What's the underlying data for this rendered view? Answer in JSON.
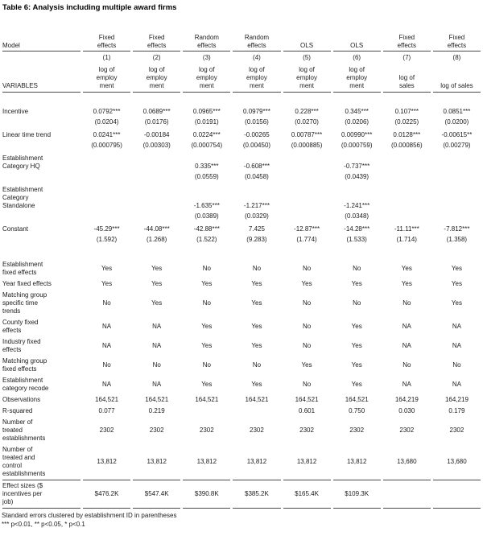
{
  "title": "Table 6: Analysis including multiple award firms",
  "table": {
    "model_row": {
      "label": "Model",
      "cells": [
        "Fixed\neffects",
        "Fixed\neffects",
        "Random\neffects",
        "Random\neffects",
        "OLS",
        "OLS",
        "Fixed\neffects",
        "Fixed\neffects"
      ]
    },
    "header_row": {
      "label": "VARIABLES",
      "numbers": [
        "(1)",
        "(2)",
        "(3)",
        "(4)",
        "(5)",
        "(6)",
        "(7)",
        "(8)"
      ],
      "depvars": [
        "log of\nemploy\nment",
        "log of\nemploy\nment",
        "log of\nemploy\nment",
        "log of\nemploy\nment",
        "log of\nemploy\nment",
        "log of\nemploy\nment",
        "log of\nsales",
        "log of sales"
      ]
    },
    "coef_rows": [
      {
        "label": "Incentive",
        "coef": [
          "0.0792***",
          "0.0689***",
          "0.0965***",
          "0.0979***",
          "0.228***",
          "0.345***",
          "0.107***",
          "0.0851***"
        ],
        "se": [
          "(0.0204)",
          "(0.0176)",
          "(0.0191)",
          "(0.0156)",
          "(0.0270)",
          "(0.0206)",
          "(0.0225)",
          "(0.0200)"
        ]
      },
      {
        "label": "Linear time trend",
        "coef": [
          "0.0241***",
          "-0.00184",
          "0.0224***",
          "-0.00265",
          "0.00787***",
          "0.00990***",
          "0.0128***",
          "-0.00615**"
        ],
        "se": [
          "(0.000795)",
          "(0.00303)",
          "(0.000754)",
          "(0.00450)",
          "(0.000885)",
          "(0.000759)",
          "(0.000856)",
          "(0.00279)"
        ]
      },
      {
        "label": "Establishment\nCategory HQ",
        "coef": [
          "",
          "",
          "0.335***",
          "-0.608***",
          "",
          "-0.737***",
          "",
          ""
        ],
        "se": [
          "",
          "",
          "(0.0559)",
          "(0.0458)",
          "",
          "(0.0439)",
          "",
          ""
        ]
      },
      {
        "label": "Establishment\nCategory\nStandalone",
        "coef": [
          "",
          "",
          "-1.635***",
          "-1.217***",
          "",
          "-1.241***",
          "",
          ""
        ],
        "se": [
          "",
          "",
          "(0.0389)",
          "(0.0329)",
          "",
          "(0.0348)",
          "",
          ""
        ]
      },
      {
        "label": "Constant",
        "coef": [
          "-45.29***",
          "-44.08***",
          "-42.88***",
          "7.425",
          "-12.87***",
          "-14.28***",
          "-11.11***",
          "-7.812***"
        ],
        "se": [
          "(1.592)",
          "(1.268)",
          "(1.522)",
          "(9.283)",
          "(1.774)",
          "(1.533)",
          "(1.714)",
          "(1.358)"
        ]
      }
    ],
    "spec_rows": [
      {
        "label": "Establishment\nfixed effects",
        "values": [
          "Yes",
          "Yes",
          "No",
          "No",
          "No",
          "No",
          "Yes",
          "Yes"
        ],
        "rule": false
      },
      {
        "label": "Year fixed effects",
        "values": [
          "Yes",
          "Yes",
          "Yes",
          "Yes",
          "Yes",
          "Yes",
          "Yes",
          "Yes"
        ],
        "rule": false
      },
      {
        "label": "Matching group\nspecific time\ntrends",
        "values": [
          "No",
          "Yes",
          "No",
          "Yes",
          "No",
          "No",
          "No",
          "Yes"
        ],
        "rule": false
      },
      {
        "label": "County fixed\neffects",
        "values": [
          "NA",
          "NA",
          "Yes",
          "Yes",
          "No",
          "Yes",
          "NA",
          "NA"
        ],
        "rule": false
      },
      {
        "label": "Industry fixed\neffects",
        "values": [
          "NA",
          "NA",
          "Yes",
          "Yes",
          "No",
          "Yes",
          "NA",
          "NA"
        ],
        "rule": false
      },
      {
        "label": "Matching group\nfixed effects",
        "values": [
          "No",
          "No",
          "No",
          "No",
          "Yes",
          "Yes",
          "No",
          "No"
        ],
        "rule": false
      },
      {
        "label": "Establishment\ncategory recode",
        "values": [
          "NA",
          "NA",
          "Yes",
          "Yes",
          "No",
          "Yes",
          "NA",
          "NA"
        ],
        "rule": false
      },
      {
        "label": "Observations",
        "values": [
          "164,521",
          "164,521",
          "164,521",
          "164,521",
          "164,521",
          "164,521",
          "164,219",
          "164,219"
        ],
        "rule": false
      },
      {
        "label": "R-squared",
        "values": [
          "0.077",
          "0.219",
          "",
          "",
          "0.601",
          "0.750",
          "0.030",
          "0.179"
        ],
        "rule": false
      },
      {
        "label": "Number of\ntreated\nestablishments",
        "values": [
          "2302",
          "2302",
          "2302",
          "2302",
          "2302",
          "2302",
          "2302",
          "2302"
        ],
        "rule": false
      },
      {
        "label": "Number of\ntreated and\ncontrol\nestablishments",
        "values": [
          "13,812",
          "13,812",
          "13,812",
          "13,812",
          "13,812",
          "13,812",
          "13,680",
          "13,680"
        ],
        "rule": true
      },
      {
        "label": "Effect sizes ($\nincentives per\njob)",
        "values": [
          "$476.2K",
          "$547.4K",
          "$390.8K",
          "$385.2K",
          "$165.4K",
          "$109.3K",
          "",
          ""
        ],
        "rule": true
      }
    ]
  },
  "notes": [
    "Standard errors clustered by establishment ID in parentheses",
    "*** p<0.01, ** p<0.05, * p<0.1"
  ]
}
